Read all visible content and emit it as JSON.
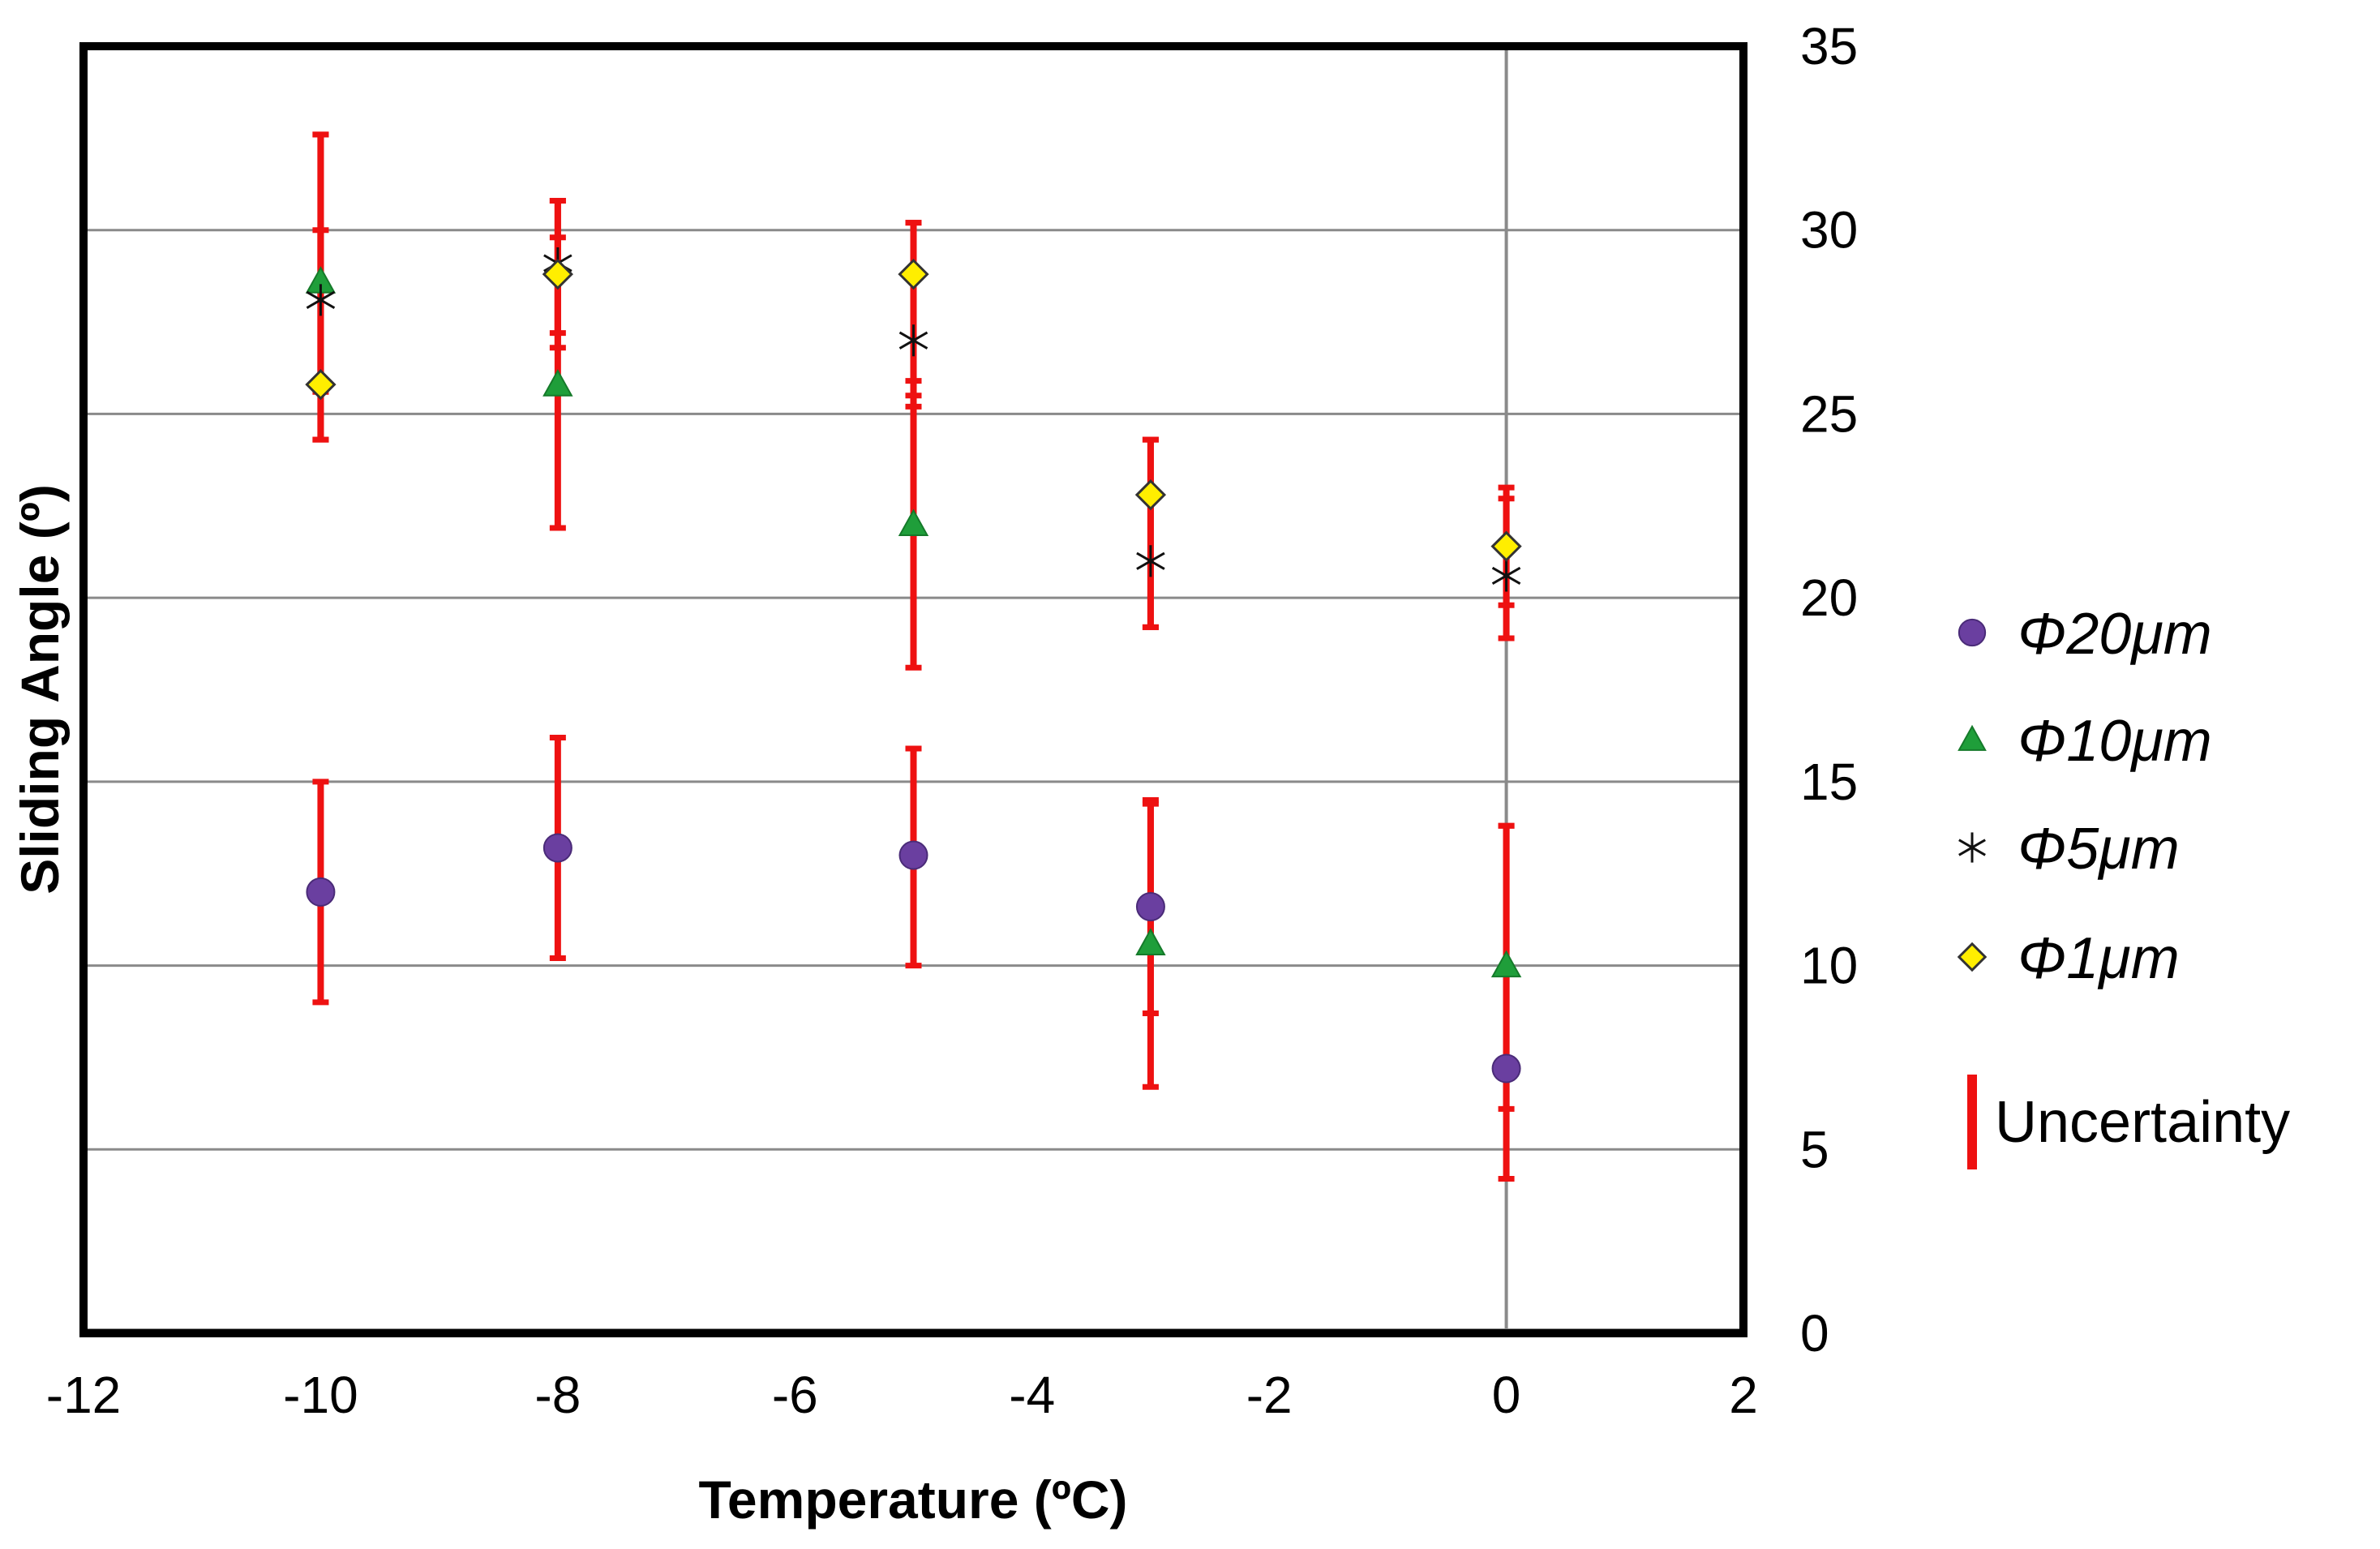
{
  "chart_data": {
    "type": "scatter",
    "title": "",
    "xlabel": "Temperature (ºC)",
    "ylabel": "Sliding Angle (º)",
    "xlim": [
      -12,
      2
    ],
    "ylim": [
      0,
      35
    ],
    "xticks": [
      -12,
      -10,
      -8,
      -6,
      -4,
      -2,
      0,
      2
    ],
    "yticks": [
      0,
      5,
      10,
      15,
      20,
      25,
      30,
      35
    ],
    "y_axis_side": "right",
    "grid": "horizontal",
    "legend_position": "right",
    "series": [
      {
        "name": "Φ20μm",
        "marker": "circle",
        "color": "#6a3fa0",
        "points": [
          {
            "x": -10,
            "y": 12.0,
            "err_low": 9.0,
            "err_high": 15.0
          },
          {
            "x": -8,
            "y": 13.2,
            "err_low": 10.2,
            "err_high": 16.2
          },
          {
            "x": -5,
            "y": 13.0,
            "err_low": 10.0,
            "err_high": 15.9
          },
          {
            "x": -3,
            "y": 11.6,
            "err_low": 8.7,
            "err_high": 14.5
          },
          {
            "x": 0,
            "y": 7.2,
            "err_low": 4.2,
            "err_high": 13.8
          }
        ]
      },
      {
        "name": "Φ10μm",
        "marker": "triangle",
        "color": "#1f9e3a",
        "points": [
          {
            "x": -10,
            "y": 28.6,
            "err_low": 25.6,
            "err_high": 32.6
          },
          {
            "x": -8,
            "y": 25.8,
            "err_low": 21.9,
            "err_high": 29.8
          },
          {
            "x": -5,
            "y": 22.0,
            "err_low": 18.1,
            "err_high": 25.9
          },
          {
            "x": -3,
            "y": 10.6,
            "err_low": 6.7,
            "err_high": 14.4
          },
          {
            "x": 0,
            "y": 10.0,
            "err_low": 6.1,
            "err_high": 13.8
          }
        ]
      },
      {
        "name": "Φ5μm",
        "marker": "asterisk",
        "color": "#111111",
        "points": [
          {
            "x": -10,
            "y": 28.1,
            "err_low": 24.3,
            "err_high": 32.6
          },
          {
            "x": -8,
            "y": 29.1,
            "err_low": 27.2,
            "err_high": 30.8
          },
          {
            "x": -5,
            "y": 27.0,
            "err_low": 25.2,
            "err_high": 30.2
          },
          {
            "x": -3,
            "y": 21.0,
            "err_low": 19.2,
            "err_high": 24.3
          },
          {
            "x": 0,
            "y": 20.6,
            "err_low": 18.9,
            "err_high": 22.7
          }
        ]
      },
      {
        "name": "Φ1μm",
        "marker": "diamond",
        "color": "#ffee00",
        "points": [
          {
            "x": -10,
            "y": 25.8,
            "err_low": 24.3,
            "err_high": 30.0
          },
          {
            "x": -8,
            "y": 28.8,
            "err_low": 26.8,
            "err_high": 30.8
          },
          {
            "x": -5,
            "y": 28.8,
            "err_low": 25.5,
            "err_high": 30.2
          },
          {
            "x": -3,
            "y": 22.8,
            "err_low": 19.2,
            "err_high": 24.3
          },
          {
            "x": 0,
            "y": 21.4,
            "err_low": 19.8,
            "err_high": 23.0
          }
        ]
      }
    ],
    "legend_extra": "Uncertainty",
    "error_bar_color": "#ee1111"
  }
}
